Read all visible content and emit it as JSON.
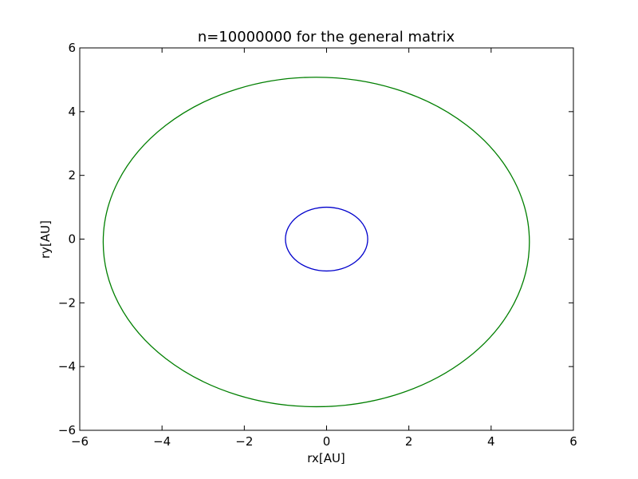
{
  "chart_data": {
    "type": "line",
    "title": "n=10000000 for the general matrix",
    "xlabel": "rx[AU]",
    "ylabel": "ry[AU]",
    "xlim": [
      -6,
      6
    ],
    "ylim": [
      -6,
      6
    ],
    "xticks": [
      -6,
      -4,
      -2,
      0,
      2,
      4,
      6
    ],
    "yticks": [
      -6,
      -4,
      -2,
      0,
      2,
      4,
      6
    ],
    "xtick_labels": [
      "−6",
      "−4",
      "−2",
      "0",
      "2",
      "4",
      "6"
    ],
    "ytick_labels": [
      "−6",
      "−4",
      "−2",
      "0",
      "2",
      "4",
      "6"
    ],
    "grid": false,
    "series": [
      {
        "color": "#0000cc",
        "shape": "ellipse",
        "center": [
          0.0,
          0.0
        ],
        "radius_x": 1.0,
        "radius_y": 1.0
      },
      {
        "color": "#007f00",
        "shape": "ellipse",
        "center": [
          -0.25,
          -0.09
        ],
        "radius_x": 5.18,
        "radius_y": 5.17
      }
    ]
  }
}
